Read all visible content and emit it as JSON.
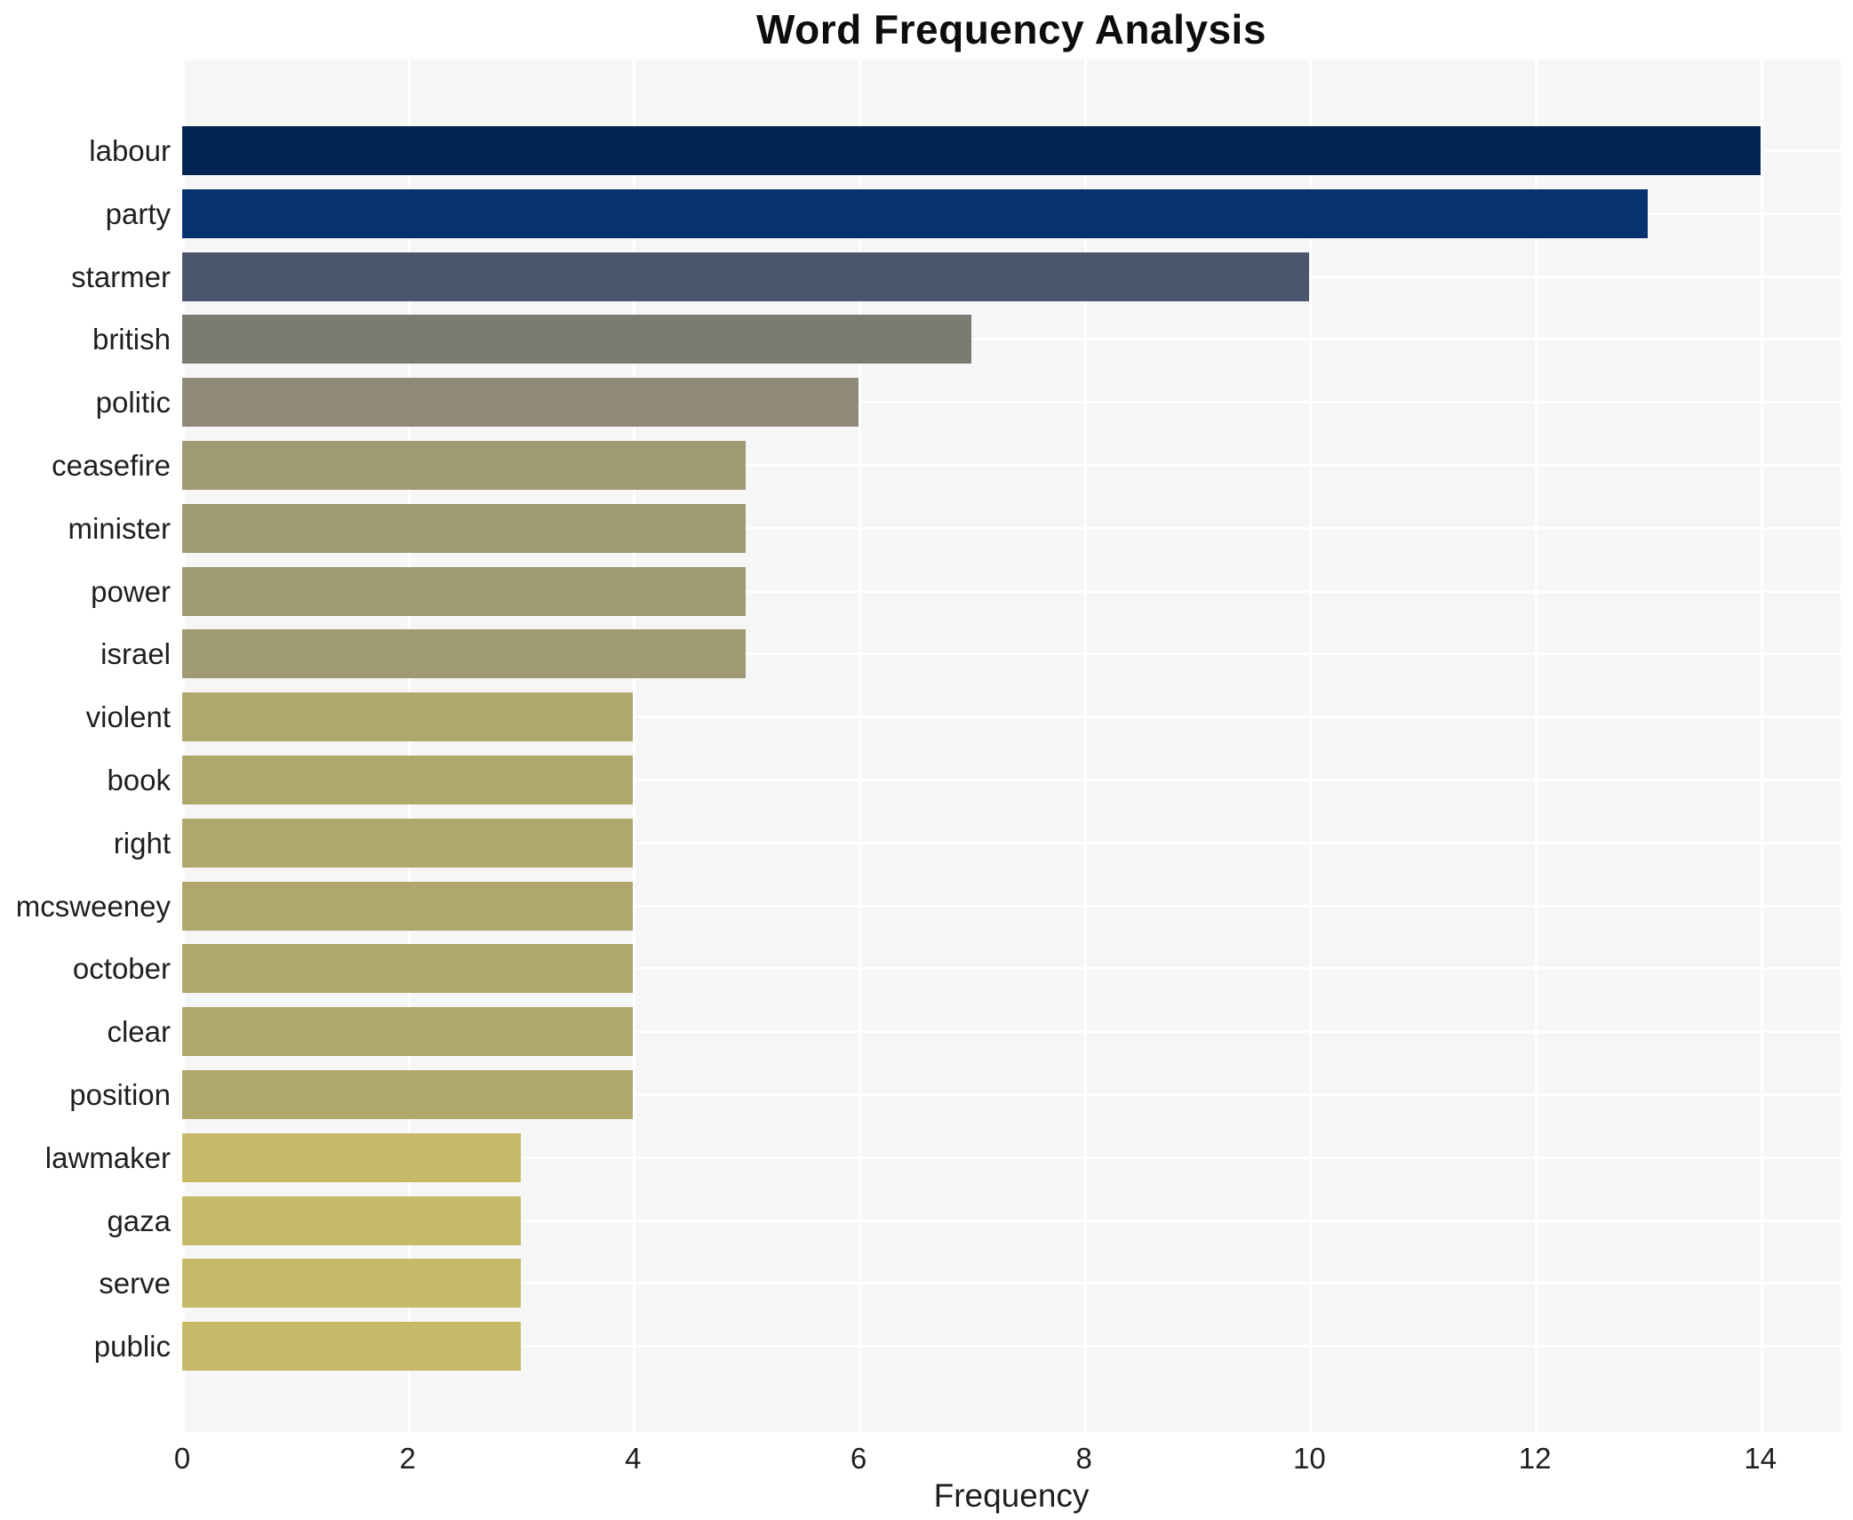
{
  "chart_data": {
    "type": "bar",
    "orientation": "horizontal",
    "title": "Word Frequency Analysis",
    "xlabel": "Frequency",
    "ylabel": "",
    "xlim": [
      0,
      14.72
    ],
    "xticks": [
      0,
      2,
      4,
      6,
      8,
      10,
      12,
      14
    ],
    "grid": true,
    "legend": false,
    "categories": [
      "labour",
      "party",
      "starmer",
      "british",
      "politic",
      "ceasefire",
      "minister",
      "power",
      "israel",
      "violent",
      "book",
      "right",
      "mcsweeney",
      "october",
      "clear",
      "position",
      "lawmaker",
      "gaza",
      "serve",
      "public"
    ],
    "values": [
      14,
      13,
      10,
      7,
      6,
      5,
      5,
      5,
      5,
      4,
      4,
      4,
      4,
      4,
      4,
      4,
      3,
      3,
      3,
      3
    ],
    "bar_colors": [
      "#032350",
      "#083170",
      "#4c556e",
      "#7b7a73",
      "#8f8978",
      "#9f9974",
      "#9f9974",
      "#9f9974",
      "#9f9974",
      "#b0a76d",
      "#b0a76d",
      "#b0a76d",
      "#b0a76d",
      "#b0a76d",
      "#b0a76d",
      "#b0a76d",
      "#c6b968",
      "#c6b968",
      "#c6b968",
      "#c6b968"
    ],
    "colors": {
      "plot_background": "#f6f6f7",
      "grid": "#ffffff",
      "text": "#1f1f1f",
      "title": "#0d0d0d"
    }
  }
}
